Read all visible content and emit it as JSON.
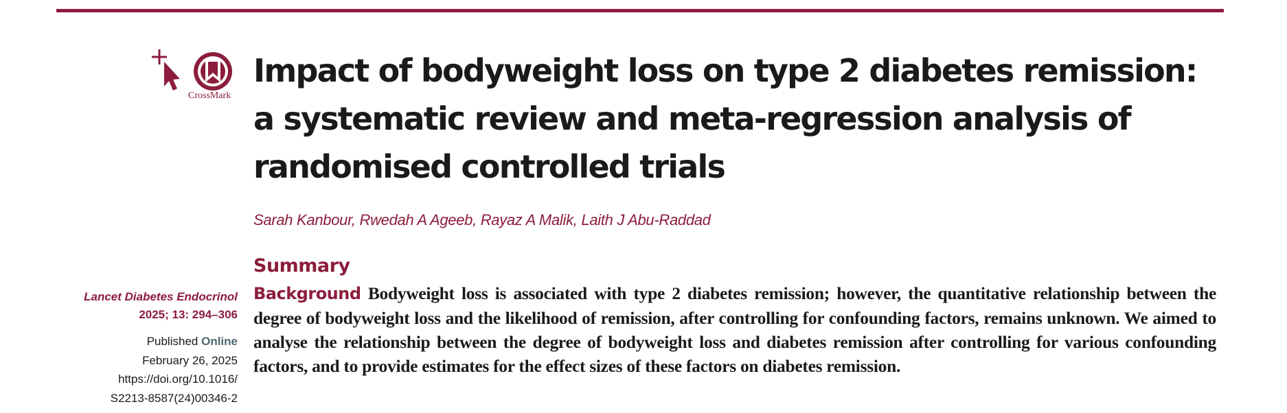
{
  "crossmark": {
    "label": "CrossMark"
  },
  "title_lines": [
    "Impact of bodyweight loss on type 2 diabetes remission:",
    "a systematic review and meta-regression analysis of",
    "randomised controlled trials"
  ],
  "authors": "Sarah Kanbour, Rwedah A Ageeb, Rayaz A Malik, Laith J Abu-Raddad",
  "summary_heading": "Summary",
  "sidebar": {
    "journal": "Lancet Diabetes Endocrinol",
    "issue": "2025; 13: 294–306",
    "published_prefix": "Published",
    "published_online": "Online",
    "date": "February 26, 2025",
    "doi_line1": "https://doi.org/10.1016/",
    "doi_line2": "S2213-8587(24)00346-2"
  },
  "abstract": {
    "background_label": "Background",
    "background_text": "Bodyweight loss is associated with type 2 diabetes remission; however, the quantitative relationship between the degree of bodyweight loss and the likelihood of remission, after controlling for confounding factors, remains unknown. We aimed to analyse the relationship between the degree of bodyweight loss and diabetes remission after controlling for various confounding factors, and to provide estimates for the effect sizes of these factors on diabetes remission."
  },
  "colors": {
    "accent": "#8c1d3c",
    "text": "#1a1a1a",
    "online": "#4d6870"
  }
}
